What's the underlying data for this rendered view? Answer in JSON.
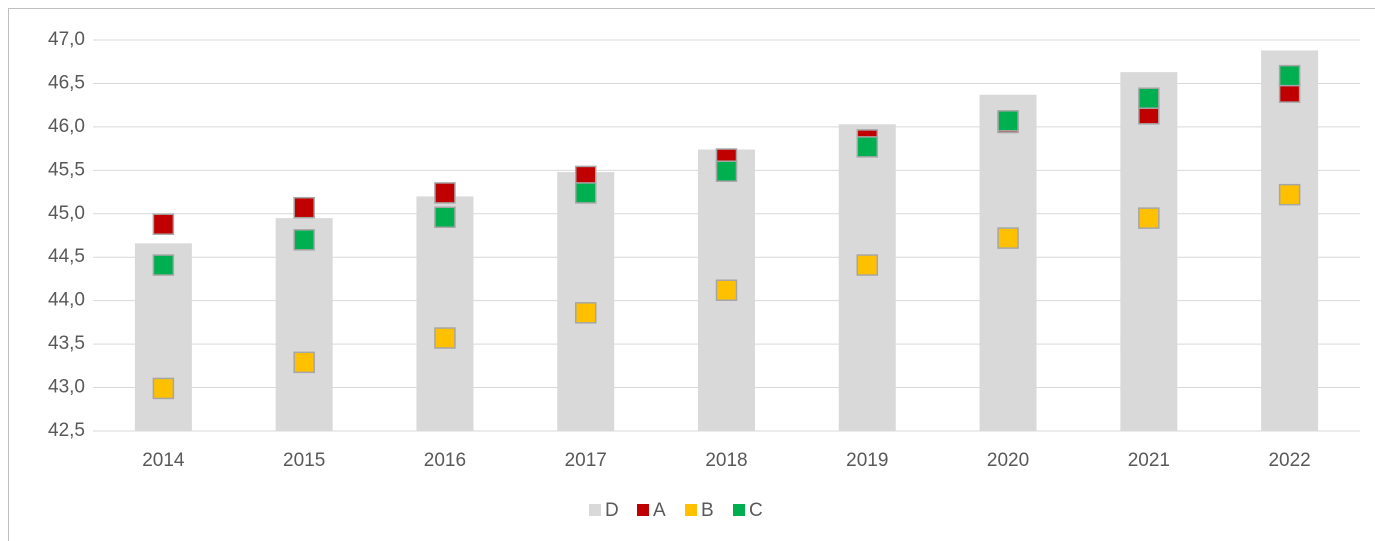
{
  "chart_data": {
    "type": "bar",
    "categories": [
      "2014",
      "2015",
      "2016",
      "2017",
      "2018",
      "2019",
      "2020",
      "2021",
      "2022"
    ],
    "series": [
      {
        "name": "D",
        "type": "bar",
        "color": "#d9d9d9",
        "values": [
          44.66,
          44.95,
          45.2,
          45.48,
          45.74,
          46.03,
          46.37,
          46.63,
          46.88
        ]
      },
      {
        "name": "A",
        "type": "scatter",
        "color": "#c00000",
        "values": [
          44.88,
          45.07,
          45.24,
          45.43,
          45.63,
          45.85,
          46.05,
          46.15,
          46.4
        ]
      },
      {
        "name": "B",
        "type": "scatter",
        "color": "#ffc000",
        "values": [
          42.99,
          43.29,
          43.57,
          43.86,
          44.12,
          44.41,
          44.72,
          44.95,
          45.22
        ]
      },
      {
        "name": "C",
        "type": "scatter",
        "color": "#00b050",
        "values": [
          44.41,
          44.7,
          44.96,
          45.24,
          45.49,
          45.77,
          46.07,
          46.33,
          46.59
        ]
      }
    ],
    "ylim": [
      42.5,
      47.0
    ],
    "yticks": [
      {
        "value": 42.5,
        "label": "42,5"
      },
      {
        "value": 43.0,
        "label": "43,0"
      },
      {
        "value": 43.5,
        "label": "43,5"
      },
      {
        "value": 44.0,
        "label": "44,0"
      },
      {
        "value": 44.5,
        "label": "44,5"
      },
      {
        "value": 45.0,
        "label": "45,0"
      },
      {
        "value": 45.5,
        "label": "45,5"
      },
      {
        "value": 46.0,
        "label": "46,0"
      },
      {
        "value": 46.5,
        "label": "46,5"
      },
      {
        "value": 47.0,
        "label": "47,0"
      }
    ],
    "grid": true,
    "legend": "bottom"
  }
}
